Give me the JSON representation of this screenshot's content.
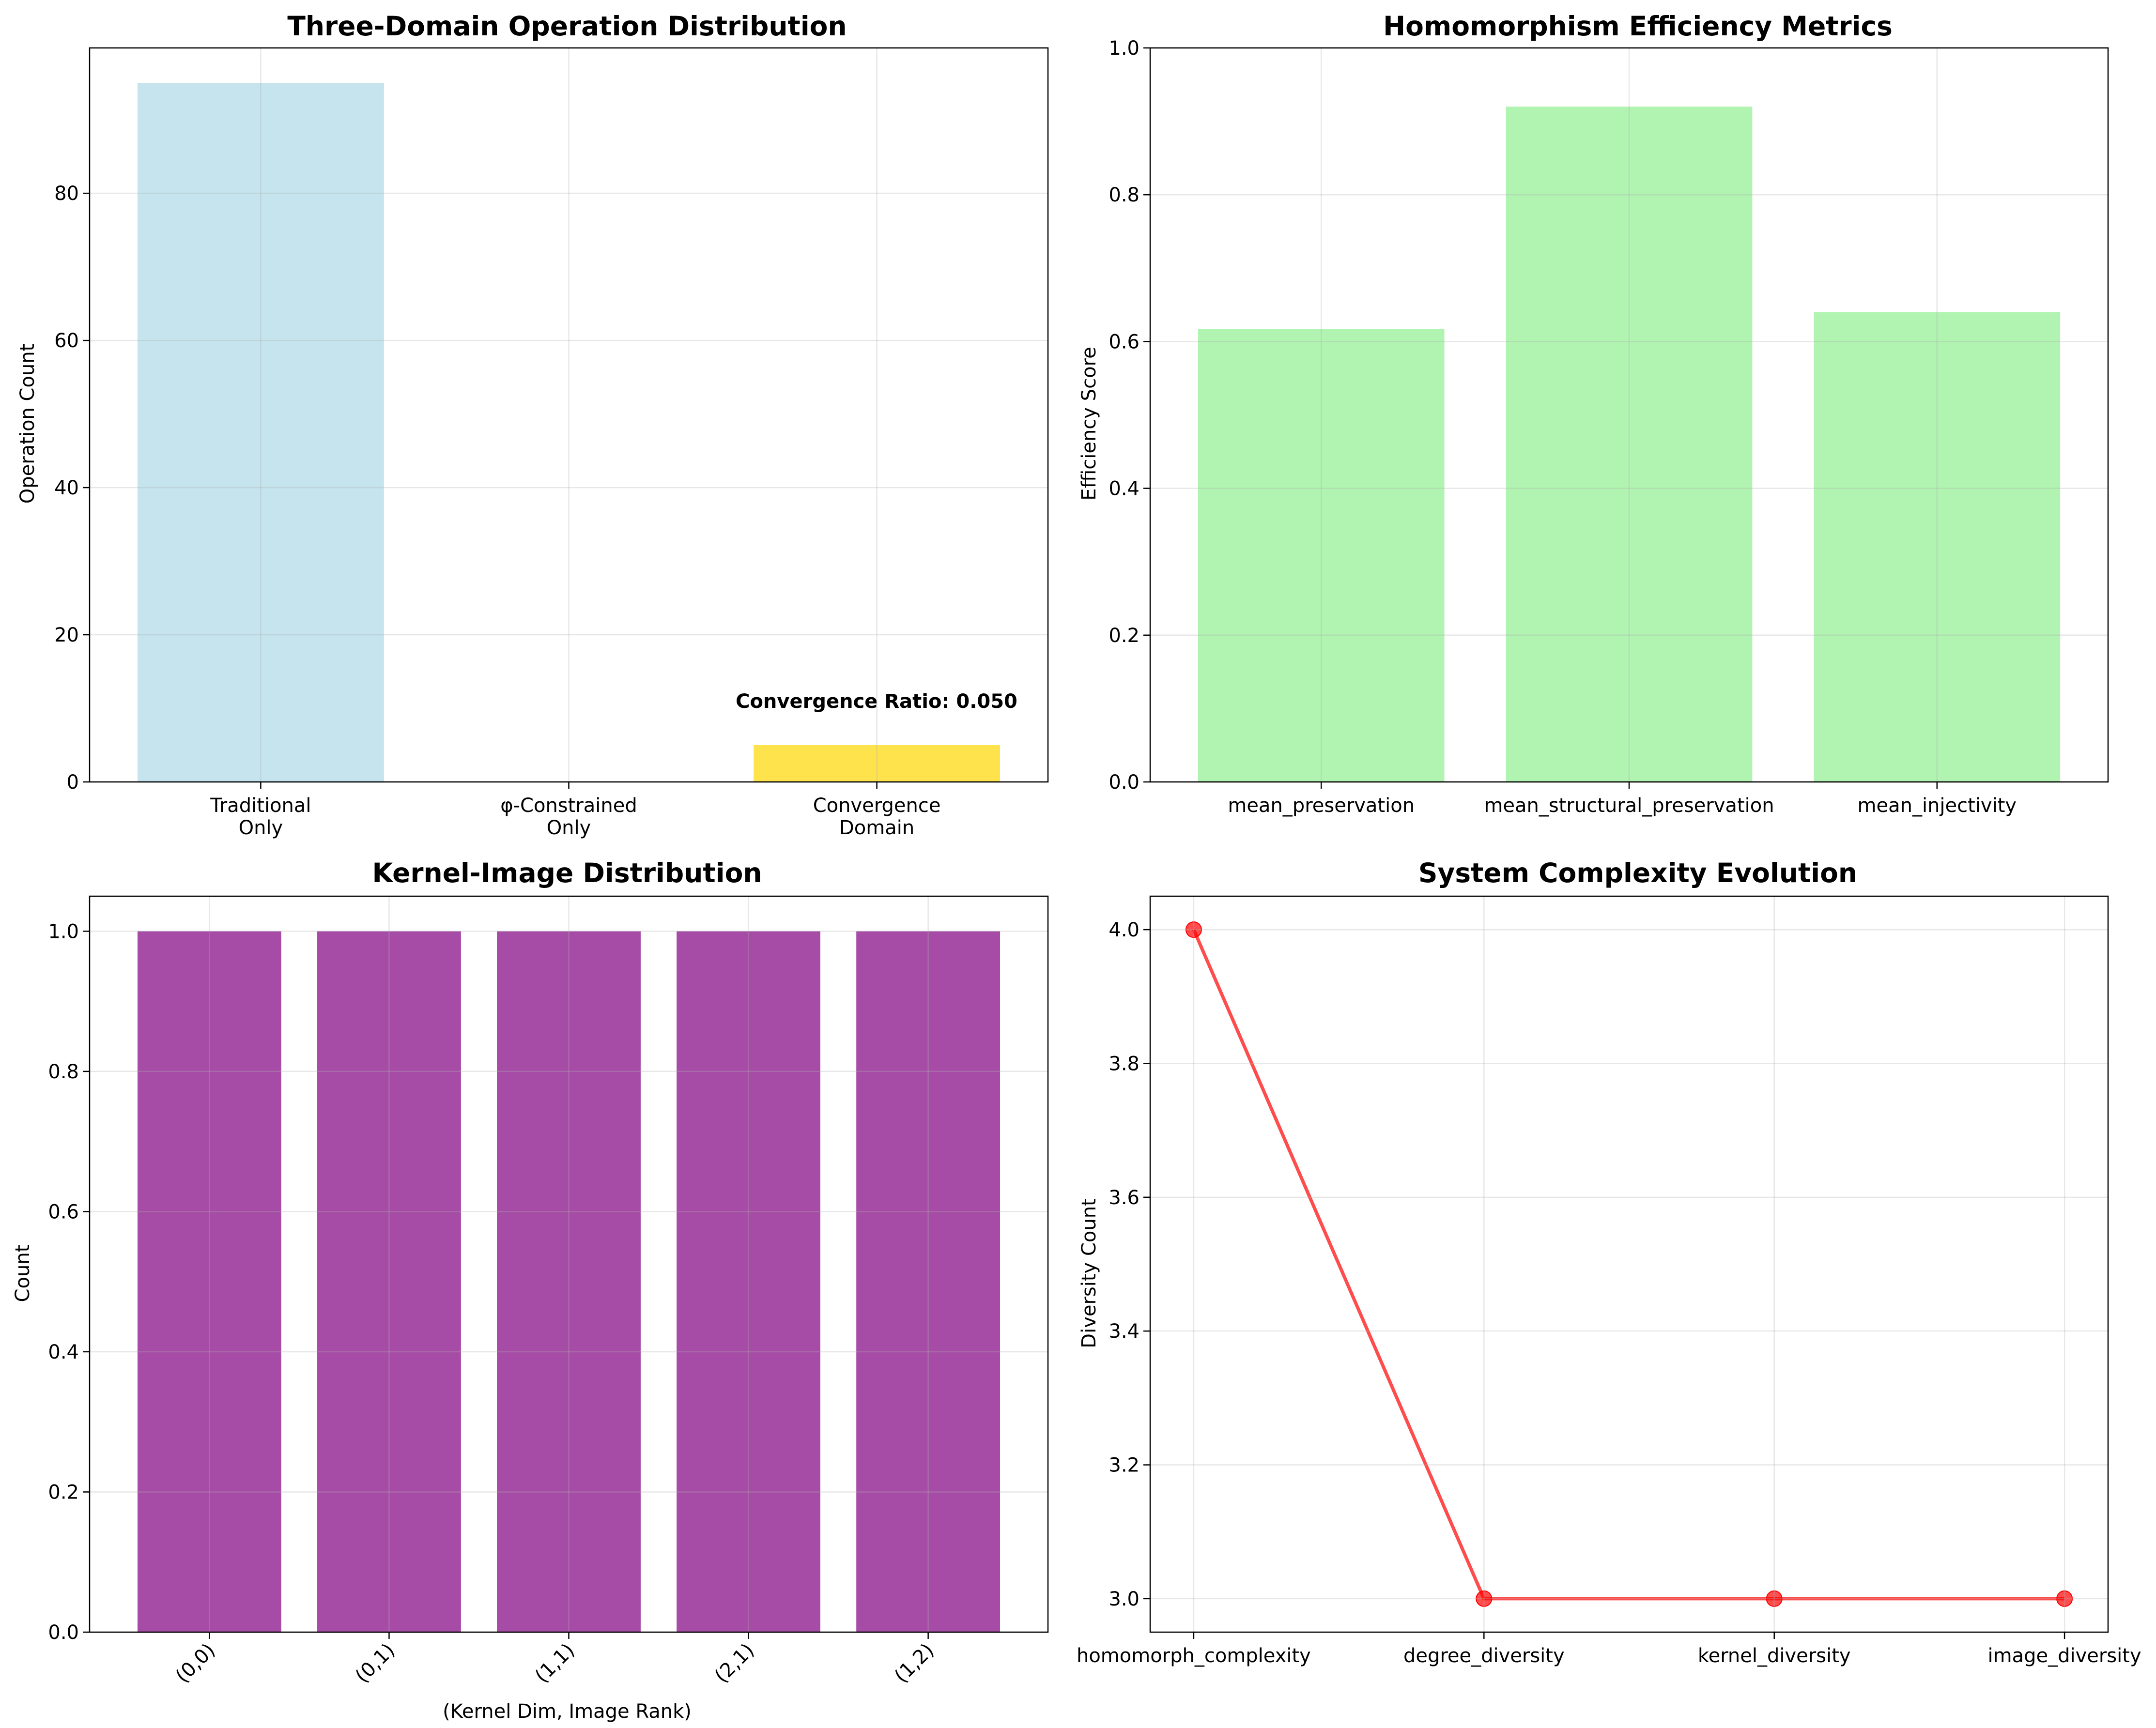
{
  "chart_data": [
    {
      "type": "bar",
      "title": "Three-Domain Operation Distribution",
      "xlabel": "",
      "ylabel": "Operation Count",
      "categories": [
        [
          "Traditional",
          "Only"
        ],
        [
          "φ-Constrained",
          "Only"
        ],
        [
          "Convergence",
          "Domain"
        ]
      ],
      "values": [
        95,
        0,
        5
      ],
      "colors": [
        "#add8e6",
        "#ff8c00",
        "#ffd700"
      ],
      "ylim": [
        0,
        99.75
      ],
      "yticks": [
        0,
        20,
        40,
        60,
        80
      ],
      "grid": true,
      "annotation": "Convergence Ratio: 0.050"
    },
    {
      "type": "bar",
      "title": "Homomorphism Efficiency Metrics",
      "xlabel": "",
      "ylabel": "Efficiency Score",
      "categories": [
        [
          "mean_preservation"
        ],
        [
          "mean_structural_preservation"
        ],
        [
          "mean_injectivity"
        ]
      ],
      "values": [
        0.617,
        0.92,
        0.64
      ],
      "colors": [
        "#90ee90",
        "#90ee90",
        "#90ee90"
      ],
      "ylim": [
        0,
        1.0
      ],
      "yticks": [
        0.0,
        0.2,
        0.4,
        0.6,
        0.8,
        1.0
      ],
      "grid": true
    },
    {
      "type": "bar",
      "title": "Kernel-Image Distribution",
      "xlabel": "(Kernel Dim, Image Rank)",
      "ylabel": "Count",
      "categories": [
        [
          "(0,0)"
        ],
        [
          "(0,1)"
        ],
        [
          "(1,1)"
        ],
        [
          "(2,1)"
        ],
        [
          "(1,2)"
        ]
      ],
      "values": [
        1,
        1,
        1,
        1,
        1
      ],
      "colors": [
        "#800080",
        "#800080",
        "#800080",
        "#800080",
        "#800080"
      ],
      "ylim": [
        0,
        1.05
      ],
      "yticks": [
        0.0,
        0.2,
        0.4,
        0.6,
        0.8,
        1.0
      ],
      "xtick_rotation": 45,
      "grid": true
    },
    {
      "type": "line",
      "title": "System Complexity Evolution",
      "xlabel": "",
      "ylabel": "Diversity Count",
      "categories": [
        [
          "homomorph_complexity"
        ],
        [
          "degree_diversity"
        ],
        [
          "kernel_diversity"
        ],
        [
          "image_diversity"
        ]
      ],
      "values": [
        4,
        3,
        3,
        3
      ],
      "color": "#ff0000",
      "ylim": [
        2.95,
        4.05
      ],
      "yticks": [
        3.0,
        3.2,
        3.4,
        3.6,
        3.8,
        4.0
      ],
      "grid": true,
      "marker": "circle"
    }
  ]
}
